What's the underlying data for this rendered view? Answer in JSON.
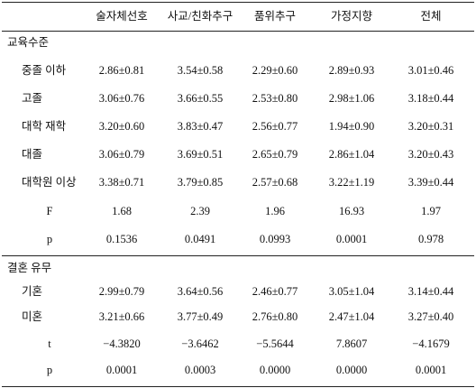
{
  "table": {
    "columns": [
      "술자체선호",
      "사교/친화추구",
      "품위추구",
      "가정지향",
      "전체"
    ],
    "sections": [
      {
        "title": "교육수준",
        "rows": [
          {
            "label": "중졸 이하",
            "cells": [
              "2.86±0.81",
              "3.54±0.58",
              "2.29±0.60",
              "2.89±0.93",
              "3.01±0.46"
            ]
          },
          {
            "label": "고졸",
            "cells": [
              "3.06±0.76",
              "3.66±0.55",
              "2.53±0.80",
              "2.98±1.06",
              "3.18±0.44"
            ]
          },
          {
            "label": "대학 재학",
            "cells": [
              "3.20±0.60",
              "3.83±0.47",
              "2.56±0.77",
              "1.94±0.90",
              "3.20±0.31"
            ]
          },
          {
            "label": "대졸",
            "cells": [
              "3.06±0.79",
              "3.69±0.51",
              "2.65±0.79",
              "2.86±1.04",
              "3.20±0.43"
            ]
          },
          {
            "label": "대학원 이상",
            "cells": [
              "3.38±0.71",
              "3.79±0.85",
              "2.57±0.68",
              "3.22±1.19",
              "3.39±0.44"
            ]
          }
        ],
        "stats": [
          {
            "label": "F",
            "cells": [
              "1.68",
              "2.39",
              "1.96",
              "16.93",
              "1.97"
            ]
          },
          {
            "label": "p",
            "cells": [
              "0.1536",
              "0.0491",
              "0.0993",
              "0.0001",
              "0.978"
            ]
          }
        ]
      },
      {
        "title": "결혼 유무",
        "rows": [
          {
            "label": "기혼",
            "cells": [
              "2.99±0.79",
              "3.64±0.56",
              "2.46±0.77",
              "3.05±1.04",
              "3.14±0.44"
            ]
          },
          {
            "label": "미혼",
            "cells": [
              "3.21±0.66",
              "3.77±0.49",
              "2.76±0.80",
              "2.47±1.04",
              "3.27±0.40"
            ]
          }
        ],
        "stats": [
          {
            "label": "t",
            "cells": [
              "−4.3820",
              "−3.6462",
              "−5.5644",
              "7.8607",
              "−4.1679"
            ]
          },
          {
            "label": "p",
            "cells": [
              "0.0001",
              "0.0003",
              "0.0000",
              "0.0000",
              "0.0001"
            ]
          }
        ]
      }
    ]
  }
}
